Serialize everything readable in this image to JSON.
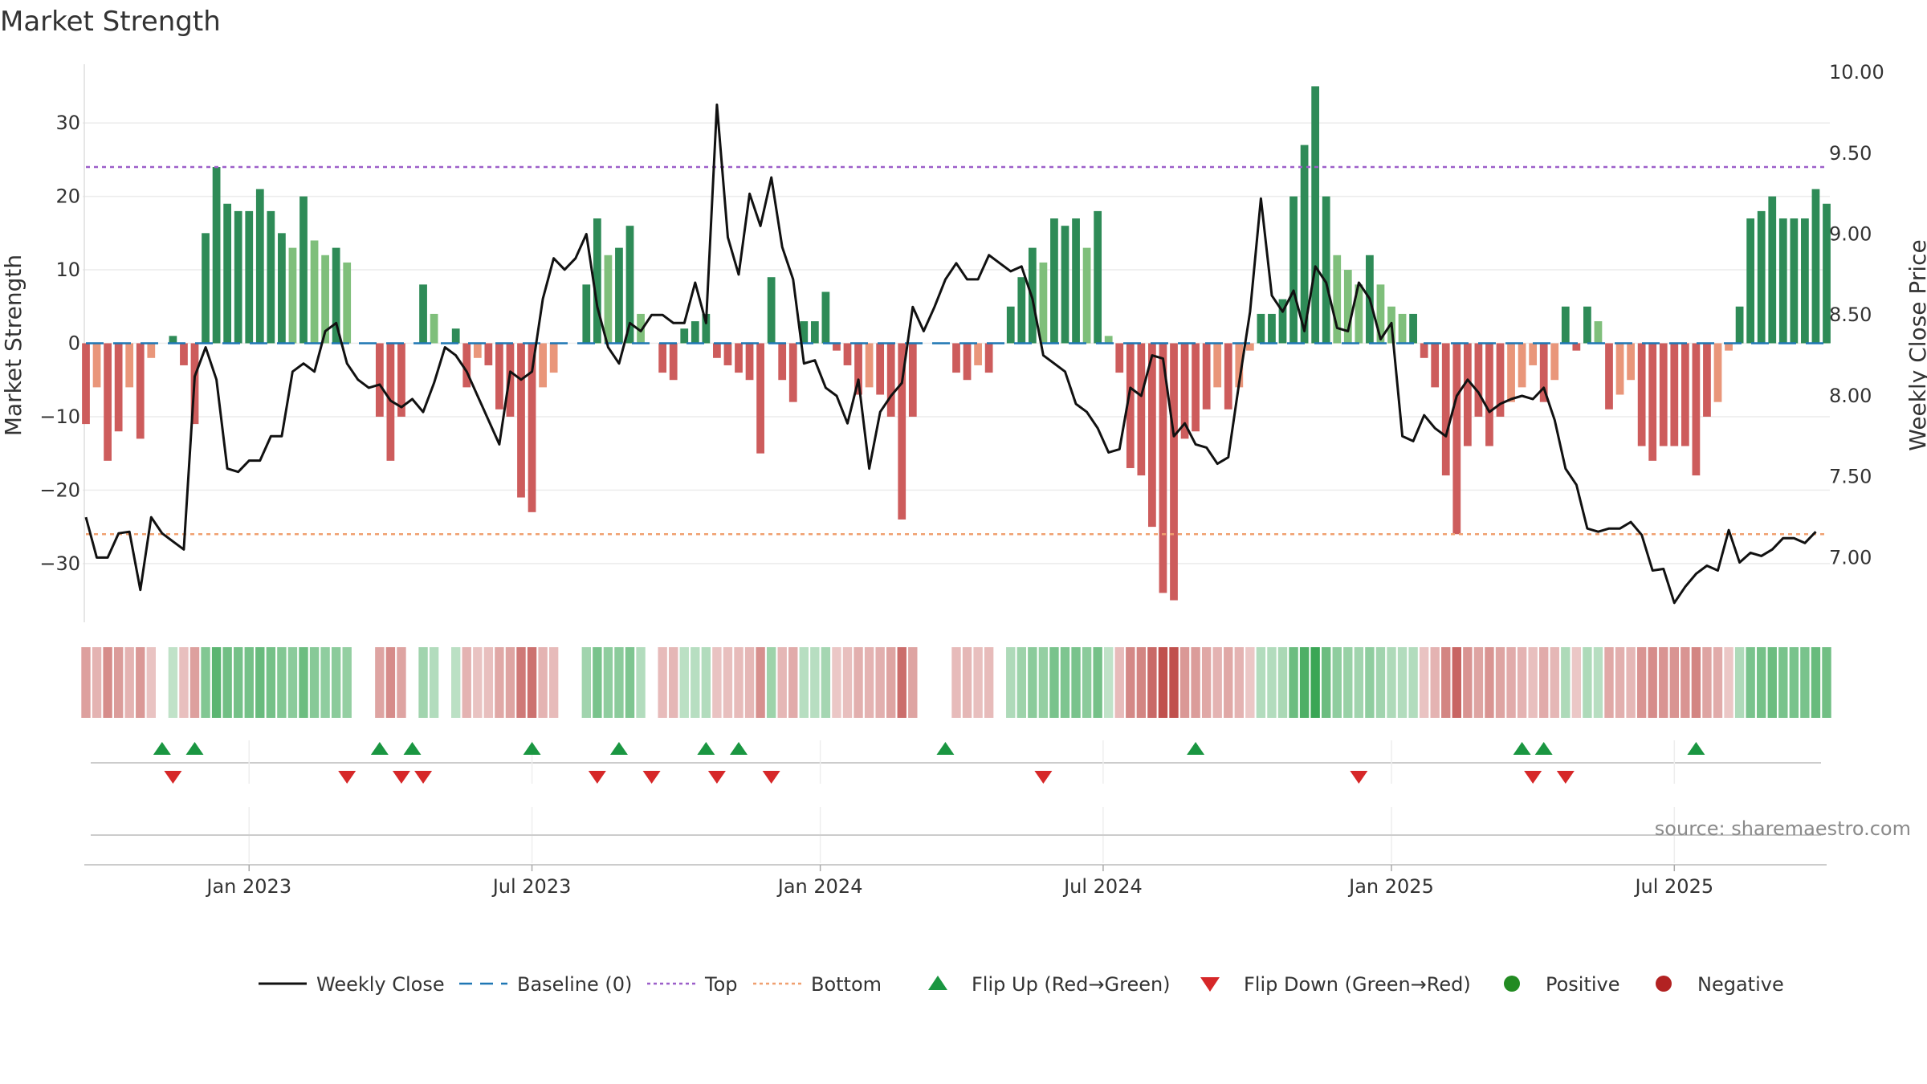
{
  "chart_data": {
    "type": "bar",
    "title": "Market Strength",
    "ylabel": "Market Strength",
    "y2label": "Weekly Close Price",
    "ylim": [
      -38,
      38
    ],
    "y2lim": [
      6.6,
      10.05
    ],
    "yticks": [
      30,
      20,
      10,
      0,
      -10,
      -20,
      -30
    ],
    "yticks_text": [
      "30",
      "20",
      "10",
      "0",
      "−10",
      "−20",
      "−30"
    ],
    "y2ticks": [
      10.0,
      9.5,
      9.0,
      8.5,
      8.0,
      7.5,
      7.0
    ],
    "y2ticks_text": [
      "10.00",
      "9.50",
      "9.00",
      "8.50",
      "8.00",
      "7.50",
      "7.00"
    ],
    "xticks": [
      {
        "label": "Jan 2023",
        "week": 15
      },
      {
        "label": "Jul 2023",
        "week": 41
      },
      {
        "label": "Jan 2024",
        "week": 67.5
      },
      {
        "label": "Jul 2024",
        "week": 93.5
      },
      {
        "label": "Jan 2025",
        "week": 120
      },
      {
        "label": "Jul 2025",
        "week": 146
      }
    ],
    "top_line": 24,
    "bottom_line": -26,
    "strength": [
      -11,
      -6,
      -16,
      -12,
      -6,
      -13,
      -2,
      0,
      1,
      -3,
      -11,
      15,
      24,
      19,
      18,
      18,
      21,
      18,
      15,
      13,
      20,
      14,
      12,
      13,
      11,
      0,
      0,
      -10,
      -16,
      -10,
      0,
      8,
      4,
      0,
      2,
      -6,
      -2,
      -3,
      -9,
      -10,
      -21,
      -23,
      -6,
      -4,
      0,
      0,
      8,
      17,
      12,
      13,
      16,
      4,
      0,
      -4,
      -5,
      2,
      3,
      4,
      -2,
      -3,
      -4,
      -5,
      -15,
      9,
      -5,
      -8,
      3,
      3,
      7,
      -1,
      -3,
      -7,
      -6,
      -7,
      -10,
      -24,
      -10,
      0,
      0,
      0,
      -4,
      -5,
      -3,
      -4,
      0,
      5,
      9,
      13,
      11,
      17,
      16,
      17,
      13,
      18,
      1,
      -4,
      -17,
      -18,
      -25,
      -34,
      -35,
      -13,
      -12,
      -9,
      -6,
      -9,
      -6,
      -1,
      4,
      4,
      6,
      20,
      27,
      35,
      20,
      12,
      10,
      8,
      12,
      8,
      5,
      4,
      4,
      -2,
      -6,
      -18,
      -26,
      -14,
      -10,
      -14,
      -10,
      -8,
      -6,
      -3,
      -8,
      -5,
      5,
      -1,
      5,
      3,
      -9,
      -7,
      -5,
      -14,
      -16,
      -14,
      -14,
      -14,
      -18,
      -10,
      -8,
      -1,
      5,
      17,
      18,
      20,
      17,
      17,
      17,
      21,
      19
    ],
    "weekly_close": [
      7.25,
      7.0,
      7.0,
      7.15,
      7.16,
      6.8,
      7.25,
      7.15,
      7.1,
      7.05,
      8.12,
      8.3,
      8.1,
      7.55,
      7.53,
      7.6,
      7.6,
      7.75,
      7.75,
      8.15,
      8.2,
      8.15,
      8.4,
      8.45,
      8.2,
      8.1,
      8.05,
      8.07,
      7.97,
      7.93,
      7.98,
      7.9,
      8.08,
      8.3,
      8.25,
      8.15,
      8.0,
      7.85,
      7.7,
      8.15,
      8.1,
      8.15,
      8.6,
      8.85,
      8.78,
      8.85,
      9.0,
      8.55,
      8.3,
      8.2,
      8.45,
      8.4,
      8.5,
      8.5,
      8.45,
      8.45,
      8.7,
      8.45,
      9.8,
      8.98,
      8.75,
      9.25,
      9.05,
      9.35,
      8.92,
      8.72,
      8.2,
      8.22,
      8.05,
      8.0,
      7.83,
      8.1,
      7.55,
      7.9,
      8.0,
      8.08,
      8.55,
      8.4,
      8.55,
      8.72,
      8.82,
      8.72,
      8.72,
      8.87,
      8.82,
      8.77,
      8.8,
      8.6,
      8.25,
      8.2,
      8.15,
      7.95,
      7.9,
      7.8,
      7.65,
      7.67,
      8.05,
      8.0,
      8.25,
      8.23,
      7.75,
      7.83,
      7.7,
      7.68,
      7.58,
      7.62,
      8.08,
      8.52,
      9.22,
      8.62,
      8.52,
      8.65,
      8.4,
      8.8,
      8.7,
      8.42,
      8.4,
      8.7,
      8.6,
      8.35,
      8.45,
      7.75,
      7.72,
      7.88,
      7.8,
      7.75,
      8.0,
      8.1,
      8.02,
      7.9,
      7.95,
      7.98,
      8.0,
      7.98,
      8.05,
      7.85,
      7.55,
      7.45,
      7.18,
      7.16,
      7.18,
      7.18,
      7.22,
      7.14,
      6.92,
      6.93,
      6.72,
      6.82,
      6.9,
      6.95,
      6.92,
      7.17,
      6.97,
      7.03,
      7.01,
      7.05,
      7.12,
      7.12,
      7.09,
      7.16
    ],
    "flip_up_weeks": [
      7,
      10,
      27,
      30,
      41,
      49,
      57,
      60,
      79,
      102,
      132,
      134,
      148
    ],
    "flip_down_weeks": [
      8,
      24,
      29,
      31,
      47,
      52,
      58,
      63,
      88,
      117,
      133,
      136
    ],
    "legend": [
      {
        "label": "Weekly Close",
        "kind": "line"
      },
      {
        "label": "Baseline (0)",
        "kind": "dash"
      },
      {
        "label": "Top",
        "kind": "dot-purple"
      },
      {
        "label": "Bottom",
        "kind": "dot-orange"
      },
      {
        "label": "Flip Up (Red→Green)",
        "kind": "tri-up"
      },
      {
        "label": "Flip Down (Green→Red)",
        "kind": "tri-down"
      },
      {
        "label": "Positive",
        "kind": "circle-green"
      },
      {
        "label": "Negative",
        "kind": "circle-red"
      }
    ],
    "source": "source: sharemaestro.com"
  },
  "colors": {
    "pos_dark": "#2e8b57",
    "pos_light": "#7fbf7b",
    "neg_dark": "#cd5c5c",
    "neg_light": "#e9967a",
    "line": "#111111",
    "baseline": "#1f77b4",
    "top": "#9c5fc9",
    "bottom": "#f0a070",
    "flip_up": "#1a9641",
    "flip_down": "#d62728",
    "positive": "#228b22",
    "negative": "#b22222"
  }
}
